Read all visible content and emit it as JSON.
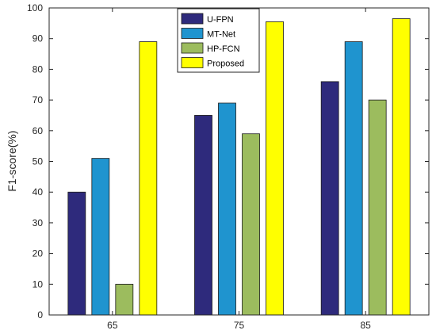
{
  "chart_data": {
    "type": "bar",
    "categories": [
      "65",
      "75",
      "85"
    ],
    "series": [
      {
        "name": "U-FPN",
        "values": [
          40,
          65,
          76
        ],
        "color": "#2e2a7c"
      },
      {
        "name": "MT-Net",
        "values": [
          51,
          69,
          89
        ],
        "color": "#1f94cf"
      },
      {
        "name": "HP-FCN",
        "values": [
          10,
          59,
          70
        ],
        "color": "#9cbc5e"
      },
      {
        "name": "Proposed",
        "values": [
          89,
          95.5,
          96.5
        ],
        "color": "#ffff00"
      }
    ],
    "xlabel": "",
    "ylabel": "F1-score(%)",
    "ylim": [
      0,
      100
    ],
    "yticks": [
      0,
      10,
      20,
      30,
      40,
      50,
      60,
      70,
      80,
      90,
      100
    ],
    "grid": false,
    "legend_position": "top-center"
  }
}
